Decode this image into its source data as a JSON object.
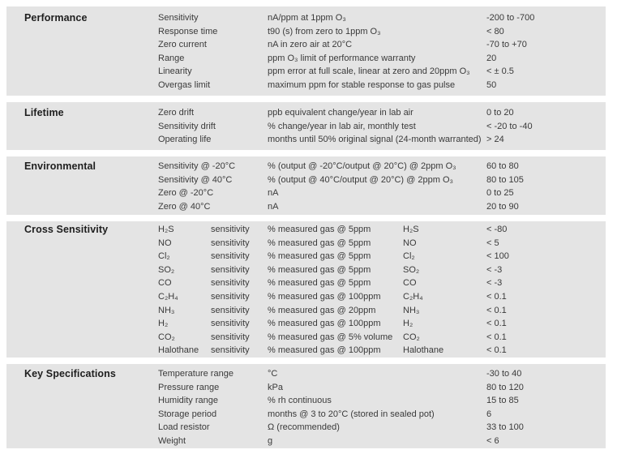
{
  "colors": {
    "band_background": "#e4e4e4",
    "body_text": "#3a3a3a",
    "heading_text": "#1e1e1e",
    "page_background": "#ffffff"
  },
  "sections": [
    {
      "title": "Performance",
      "rows": [
        {
          "label": "Sensitivity",
          "desc": "nA/ppm at 1ppm O₃",
          "value": "-200 to -700"
        },
        {
          "label": "Response time",
          "desc": "t90 (s) from zero to 1ppm O₃",
          "value": "< 80"
        },
        {
          "label": "Zero current",
          "desc": "nA in zero air at 20°C",
          "value": "-70 to +70"
        },
        {
          "label": "Range",
          "desc": "ppm O₃ limit of performance warranty",
          "value": "20"
        },
        {
          "label": "Linearity",
          "desc": "ppm error at full scale, linear at zero and 20ppm O₃",
          "value": "< ± 0.5"
        },
        {
          "label": "Overgas limit",
          "desc": "maximum ppm for stable response to gas pulse",
          "value": "50"
        }
      ]
    },
    {
      "title": "Lifetime",
      "rows": [
        {
          "label": "Zero drift",
          "desc": "ppb equivalent change/year in lab air",
          "value": "0 to 20"
        },
        {
          "label": "Sensitivity drift",
          "desc": "% change/year in lab air, monthly test",
          "value": "< -20 to -40"
        },
        {
          "label": "Operating life",
          "desc": "months until 50% original signal (24-month warranted)",
          "value": "> 24"
        }
      ]
    },
    {
      "title": "Environmental",
      "rows": [
        {
          "label": "Sensitivity @ -20°C",
          "desc": "% (output @ -20°C/output @ 20°C) @ 2ppm O₃",
          "value": "60 to 80"
        },
        {
          "label": "Sensitivity @ 40°C",
          "desc": "% (output @ 40°C/output @ 20°C) @ 2ppm O₃",
          "value": "80 to 105"
        },
        {
          "label": "Zero @ -20°C",
          "desc": "nA",
          "value": "0 to 25"
        },
        {
          "label": "Zero @ 40°C",
          "desc": "nA",
          "value": "20 to 90"
        }
      ]
    },
    {
      "title": "Cross Sensitivity",
      "rows": [
        {
          "label": "H₂S",
          "sublabel": "sensitivity",
          "desc": "% measured gas @ 5ppm",
          "gas": "H₂S",
          "value": "< -80"
        },
        {
          "label": "NO",
          "sublabel": "sensitivity",
          "desc": "% measured gas @ 5ppm",
          "gas": "NO",
          "value": "< 5"
        },
        {
          "label": "Cl₂",
          "sublabel": "sensitivity",
          "desc": "% measured gas @ 5ppm",
          "gas": "Cl₂",
          "value": "< 100"
        },
        {
          "label": "SO₂",
          "sublabel": "sensitivity",
          "desc": "% measured gas @ 5ppm",
          "gas": "SO₂",
          "value": "< -3"
        },
        {
          "label": "CO",
          "sublabel": "sensitivity",
          "desc": "% measured gas @ 5ppm",
          "gas": "CO",
          "value": "< -3"
        },
        {
          "label": "C₂H₄",
          "sublabel": "sensitivity",
          "desc": "% measured gas @ 100ppm",
          "gas": "C₂H₄",
          "value": "< 0.1"
        },
        {
          "label": "NH₃",
          "sublabel": "sensitivity",
          "desc": "% measured gas @ 20ppm",
          "gas": "NH₃",
          "value": "< 0.1"
        },
        {
          "label": "H₂",
          "sublabel": "sensitivity",
          "desc": "% measured gas @ 100ppm",
          "gas": "H₂",
          "value": "< 0.1"
        },
        {
          "label": "CO₂",
          "sublabel": "sensitivity",
          "desc": "% measured gas @ 5% volume",
          "gas": "CO₂",
          "value": "< 0.1"
        },
        {
          "label": "Halothane",
          "sublabel": "sensitivity",
          "desc": "% measured gas @ 100ppm",
          "gas": "Halothane",
          "value": "< 0.1"
        }
      ]
    },
    {
      "title": "Key Specifications",
      "rows": [
        {
          "label": "Temperature range",
          "desc": "°C",
          "value": "-30 to 40"
        },
        {
          "label": "Pressure range",
          "desc": "kPa",
          "value": "80 to 120"
        },
        {
          "label": "Humidity range",
          "desc": "% rh continuous",
          "value": "15 to 85"
        },
        {
          "label": "Storage period",
          "desc": "months @ 3 to 20°C (stored in sealed pot)",
          "value": "6"
        },
        {
          "label": "Load resistor",
          "desc": "Ω (recommended)",
          "value": "33 to 100"
        },
        {
          "label": "Weight",
          "desc": "g",
          "value": "< 6"
        }
      ]
    }
  ]
}
